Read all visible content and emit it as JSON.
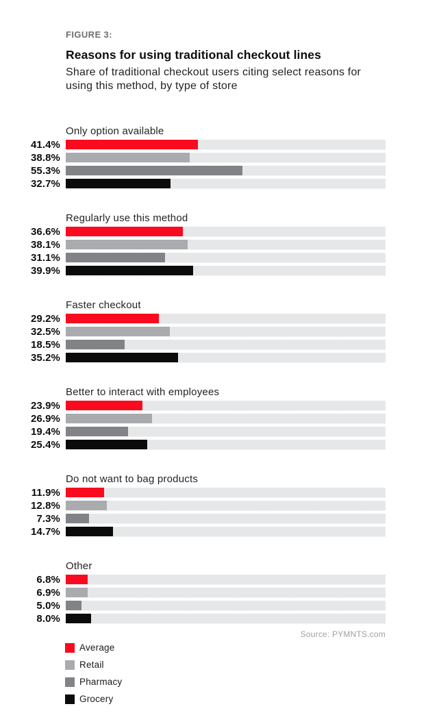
{
  "figure_label": "FIGURE 3:",
  "title": "Reasons for using traditional checkout lines",
  "subtitle": "Share of traditional checkout users citing select reasons for using this method, by type of store",
  "source": "Source: PYMNTS.com",
  "colors": {
    "average": "#fa0a1e",
    "retail": "#a9abae",
    "pharmacy": "#818386",
    "grocery": "#0b0b0b",
    "track": "#e6e7e8",
    "figure_label_gray": "#6d6e71",
    "source_gray": "#9ea0a3"
  },
  "legend": [
    {
      "label": "Average",
      "color_key": "average"
    },
    {
      "label": "Retail",
      "color_key": "retail"
    },
    {
      "label": "Pharmacy",
      "color_key": "pharmacy"
    },
    {
      "label": "Grocery",
      "color_key": "grocery"
    }
  ],
  "chart_data": {
    "type": "bar",
    "orientation": "horizontal",
    "unit": "%",
    "xlim": [
      0,
      100
    ],
    "grid": false,
    "value_labels": "left-of-bar, one decimal + %",
    "series_names": [
      "Average",
      "Retail",
      "Pharmacy",
      "Grocery"
    ],
    "series_keys": [
      "average",
      "retail",
      "pharmacy",
      "grocery"
    ],
    "groups": [
      {
        "label": "Only option available",
        "values": [
          41.4,
          38.8,
          55.3,
          32.7
        ]
      },
      {
        "label": "Regularly use this method",
        "values": [
          36.6,
          38.1,
          31.1,
          39.9
        ]
      },
      {
        "label": "Faster checkout",
        "values": [
          29.2,
          32.5,
          18.5,
          35.2
        ]
      },
      {
        "label": "Better to interact with employees",
        "values": [
          23.9,
          26.9,
          19.4,
          25.4
        ]
      },
      {
        "label": "Do not want to bag products",
        "values": [
          11.9,
          12.8,
          7.3,
          14.7
        ]
      },
      {
        "label": "Other",
        "values": [
          6.8,
          6.9,
          5.0,
          8.0
        ]
      }
    ]
  }
}
